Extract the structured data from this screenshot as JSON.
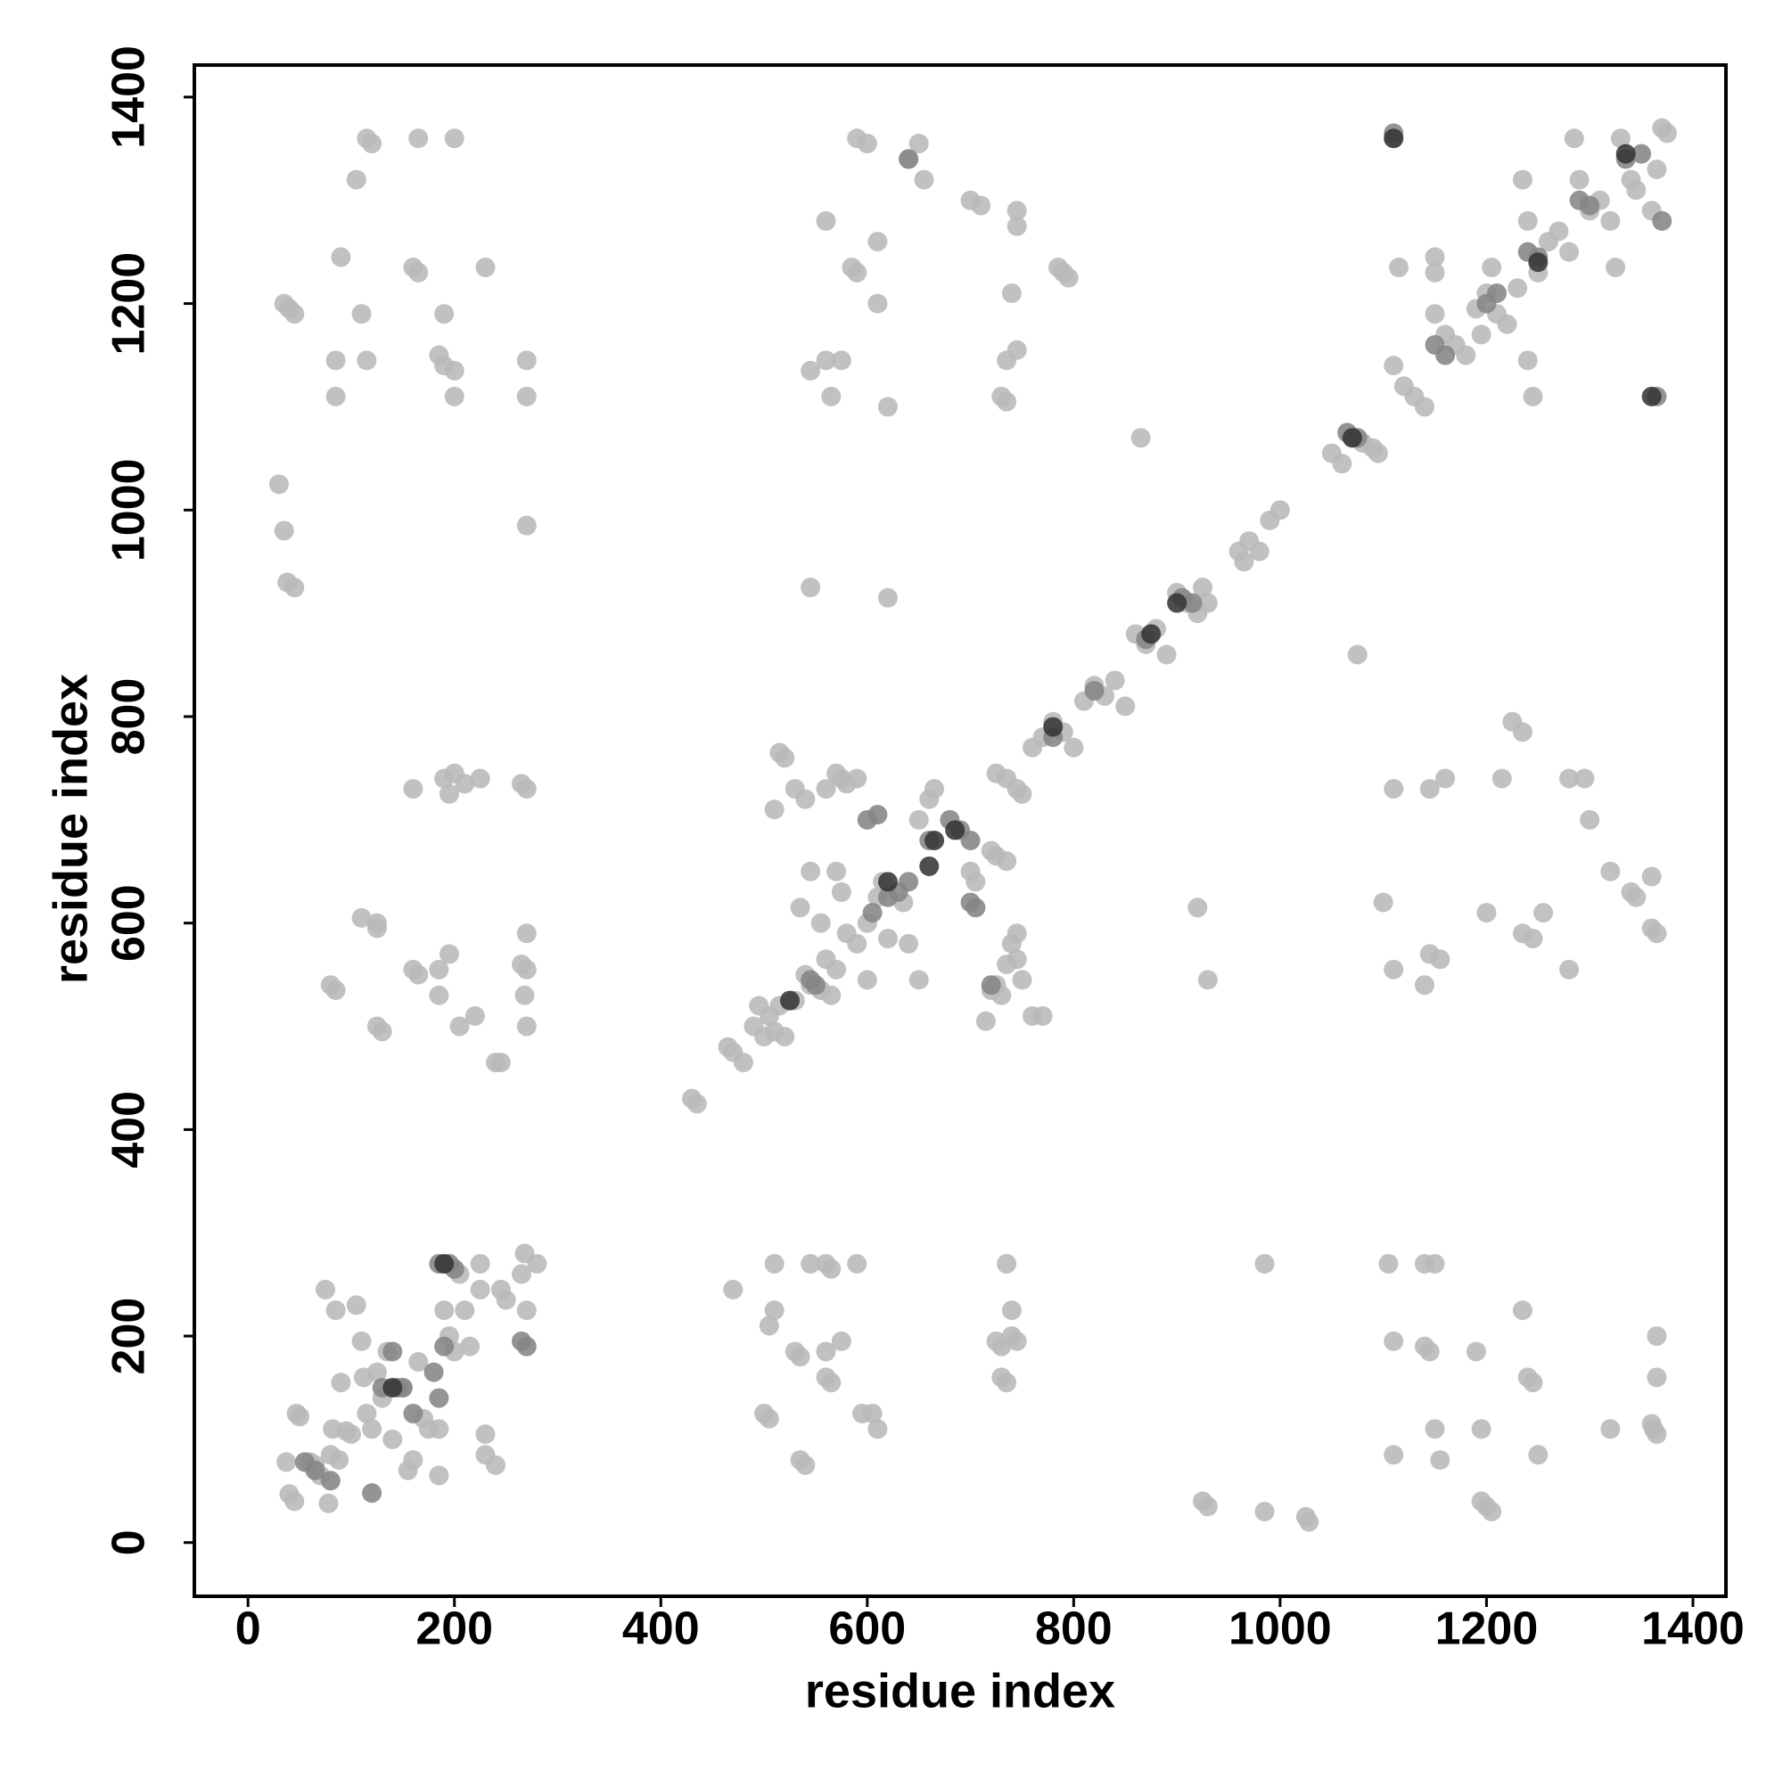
{
  "chart_data": {
    "type": "scatter",
    "xlabel": "residue index",
    "ylabel": "residue index",
    "xlim": [
      -52,
      1432
    ],
    "ylim": [
      -52,
      1431
    ],
    "xticks": [
      0,
      200,
      400,
      600,
      800,
      1000,
      1200,
      1400
    ],
    "yticks": [
      0,
      200,
      400,
      600,
      800,
      1000,
      1200,
      1400
    ],
    "grid": false,
    "series": [
      {
        "color": "#b8b8b8",
        "x": [
          37,
          40,
          45,
          47,
          50,
          60,
          65,
          70,
          75,
          78,
          80,
          82,
          85,
          88,
          90,
          95,
          100,
          105,
          110,
          112,
          115,
          120,
          125,
          130,
          135,
          140,
          150,
          155,
          160,
          165,
          170,
          175,
          185,
          185,
          190,
          195,
          200,
          205,
          210,
          215,
          225,
          225,
          230,
          230,
          240,
          245,
          250,
          265,
          268,
          270,
          280,
          30,
          35,
          38,
          45,
          35,
          40,
          45,
          90,
          85,
          85,
          115,
          120,
          105,
          115,
          110,
          160,
          165,
          165,
          190,
          185,
          190,
          200,
          200,
          200,
          230,
          270,
          270,
          270,
          160,
          190,
          195,
          200,
          210,
          225,
          265,
          270,
          110,
          125,
          125,
          80,
          85,
          160,
          165,
          185,
          185,
          195,
          205,
          220,
          240,
          245,
          265,
          270,
          268,
          270,
          270,
          125,
          130,
          470,
          500,
          505,
          510,
          505,
          510,
          530,
          535,
          535,
          540,
          545,
          560,
          565,
          560,
          560,
          565,
          575,
          590,
          595,
          605,
          610,
          725,
          730,
          735,
          730,
          735,
          740,
          740,
          745,
          985,
          985,
          1025,
          1028,
          925,
          930,
          1105,
          1110,
          1110,
          1140,
          1150,
          1140,
          1145,
          1150,
          1155,
          1190,
          1195,
          1195,
          1200,
          1205,
          1235,
          1240,
          1245,
          1250,
          1320,
          1360,
          1362,
          1365,
          1365,
          1365,
          430,
          435,
          465,
          470,
          480,
          490,
          495,
          500,
          505,
          510,
          515,
          520,
          530,
          540,
          545,
          555,
          560,
          565,
          570,
          580,
          590,
          600,
          600,
          610,
          615,
          620,
          635,
          640,
          650,
          535,
          545,
          555,
          510,
          515,
          520,
          530,
          540,
          560,
          570,
          575,
          580,
          590,
          570,
          575,
          650,
          660,
          665,
          700,
          705,
          715,
          720,
          725,
          730,
          735,
          740,
          745,
          745,
          750,
          720,
          725,
          735,
          725,
          735,
          745,
          750,
          760,
          770,
          760,
          770,
          780,
          790,
          800,
          810,
          820,
          830,
          840,
          850,
          860,
          870,
          880,
          890,
          900,
          910,
          920,
          925,
          930,
          960,
          965,
          970,
          980,
          990,
          1000,
          1050,
          1060,
          1070,
          1080,
          1090,
          1095,
          545,
          620,
          865,
          1075,
          920,
          930,
          1100,
          1110,
          1140,
          1145,
          1155,
          1110,
          1145,
          1160,
          1200,
          1215,
          1225,
          1235,
          1235,
          1245,
          1255,
          1280,
          1280,
          1295,
          1300,
          1320,
          1340,
          1345,
          1360,
          1360,
          1365,
          590,
          600,
          640,
          650,
          655,
          560,
          545,
          560,
          565,
          575,
          585,
          590,
          610,
          610,
          620,
          700,
          710,
          745,
          745,
          740,
          735,
          745,
          730,
          735,
          785,
          790,
          795,
          1110,
          1115,
          1110,
          1120,
          1130,
          1140,
          1150,
          1150,
          1150,
          1160,
          1170,
          1180,
          1190,
          1195,
          1200,
          1205,
          1210,
          1220,
          1230,
          1235,
          1240,
          1240,
          1245,
          1250,
          1260,
          1270,
          1280,
          1285,
          1290,
          1300,
          1310,
          1320,
          1325,
          1330,
          1340,
          1345,
          1360,
          1365,
          1370,
          1375
        ],
        "values": [
          78,
          47,
          40,
          125,
          122,
          78,
          75,
          65,
          245,
          38,
          85,
          110,
          225,
          80,
          155,
          108,
          105,
          230,
          195,
          160,
          125,
          110,
          165,
          140,
          185,
          100,
          150,
          70,
          80,
          175,
          120,
          110,
          110,
          65,
          225,
          200,
          185,
          260,
          225,
          190,
          270,
          245,
          105,
          85,
          75,
          245,
          235,
          260,
          280,
          225,
          270,
          1025,
          980,
          930,
          925,
          1200,
          1195,
          1190,
          1245,
          1145,
          1110,
          1360,
          1355,
          1320,
          1145,
          1190,
          1235,
          1230,
          1360,
          1190,
          1150,
          1140,
          1135,
          1110,
          1360,
          1235,
          1145,
          1110,
          985,
          730,
          740,
          725,
          745,
          735,
          740,
          735,
          730,
          605,
          600,
          595,
          540,
          535,
          555,
          550,
          555,
          530,
          570,
          500,
          510,
          465,
          465,
          560,
          555,
          530,
          500,
          590,
          500,
          495,
          245,
          125,
          120,
          270,
          210,
          225,
          185,
          180,
          80,
          75,
          270,
          270,
          265,
          185,
          160,
          155,
          195,
          270,
          125,
          125,
          110,
          195,
          190,
          270,
          160,
          155,
          225,
          200,
          195,
          270,
          30,
          25,
          20,
          40,
          35,
          270,
          85,
          195,
          270,
          270,
          190,
          185,
          110,
          80,
          185,
          110,
          40,
          35,
          30,
          225,
          160,
          155,
          85,
          110,
          115,
          110,
          105,
          160,
          200,
          430,
          425,
          480,
          475,
          465,
          500,
          520,
          490,
          510,
          495,
          520,
          490,
          525,
          550,
          540,
          535,
          565,
          530,
          555,
          590,
          580,
          600,
          545,
          625,
          640,
          585,
          620,
          580,
          545,
          615,
          650,
          600,
          710,
          765,
          760,
          730,
          720,
          730,
          745,
          740,
          735,
          740,
          650,
          630,
          700,
          720,
          730,
          650,
          640,
          505,
          535,
          540,
          530,
          560,
          580,
          590,
          565,
          545,
          670,
          665,
          660,
          745,
          740,
          730,
          725,
          510,
          510,
          770,
          780,
          795,
          785,
          770,
          815,
          830,
          820,
          835,
          810,
          880,
          870,
          885,
          860,
          920,
          910,
          900,
          925,
          910,
          960,
          950,
          970,
          960,
          990,
          1000,
          1055,
          1045,
          1070,
          1065,
          1060,
          1055,
          925,
          915,
          1070,
          860,
          615,
          545,
          620,
          555,
          540,
          570,
          565,
          730,
          730,
          740,
          610,
          740,
          795,
          785,
          590,
          585,
          610,
          555,
          740,
          740,
          700,
          650,
          630,
          625,
          645,
          595,
          590,
          1360,
          1355,
          1340,
          1355,
          1320,
          1280,
          1135,
          1145,
          1110,
          1145,
          1235,
          1230,
          1260,
          1200,
          1100,
          1300,
          1295,
          1290,
          1275,
          1210,
          1145,
          1155,
          1110,
          1105,
          1235,
          1230,
          1225,
          1360,
          1235,
          1140,
          1120,
          1110,
          1100,
          1245,
          1230,
          1190,
          1170,
          1160,
          1150,
          1195,
          1170,
          1210,
          1235,
          1190,
          1180,
          1215,
          1320,
          1280,
          1145,
          1110,
          1230,
          1260,
          1270,
          1250,
          1360,
          1320,
          1290,
          1300,
          1280,
          1235,
          1360,
          1320,
          1310,
          1290,
          1330,
          1370,
          1365
        ]
      },
      {
        "color": "#858585",
        "x": [
          185,
          190,
          150,
          640,
          1110,
          1365,
          1370,
          1335,
          1350,
          1240,
          1250,
          1150,
          1160,
          1200,
          1210,
          1290,
          1300,
          1065,
          1075,
          915,
          905,
          870,
          780,
          820,
          600,
          610,
          620,
          630,
          660,
          680,
          690,
          700,
          640,
          545,
          550,
          605,
          700,
          705,
          720,
          130,
          265,
          55,
          65,
          80,
          120,
          140,
          145,
          160,
          180,
          185,
          195,
          200,
          270
        ],
        "values": [
          270,
          190,
          150,
          1340,
          1365,
          1110,
          1280,
          1340,
          1345,
          1250,
          1245,
          1160,
          1150,
          1200,
          1210,
          1300,
          1295,
          1075,
          1070,
          910,
          915,
          875,
          780,
          825,
          700,
          705,
          625,
          630,
          680,
          700,
          690,
          680,
          640,
          545,
          540,
          610,
          620,
          615,
          540,
          150,
          195,
          78,
          70,
          60,
          48,
          185,
          150,
          125,
          165,
          140,
          270,
          265,
          190
        ]
      },
      {
        "color": "#353535",
        "x": [
          525,
          660,
          780,
          1070,
          1110,
          1360,
          900,
          620,
          665,
          685,
          875,
          190,
          140,
          1250,
          1335
        ],
        "values": [
          525,
          655,
          790,
          1070,
          1360,
          1110,
          910,
          640,
          680,
          690,
          880,
          270,
          150,
          1240,
          1345
        ]
      }
    ]
  }
}
